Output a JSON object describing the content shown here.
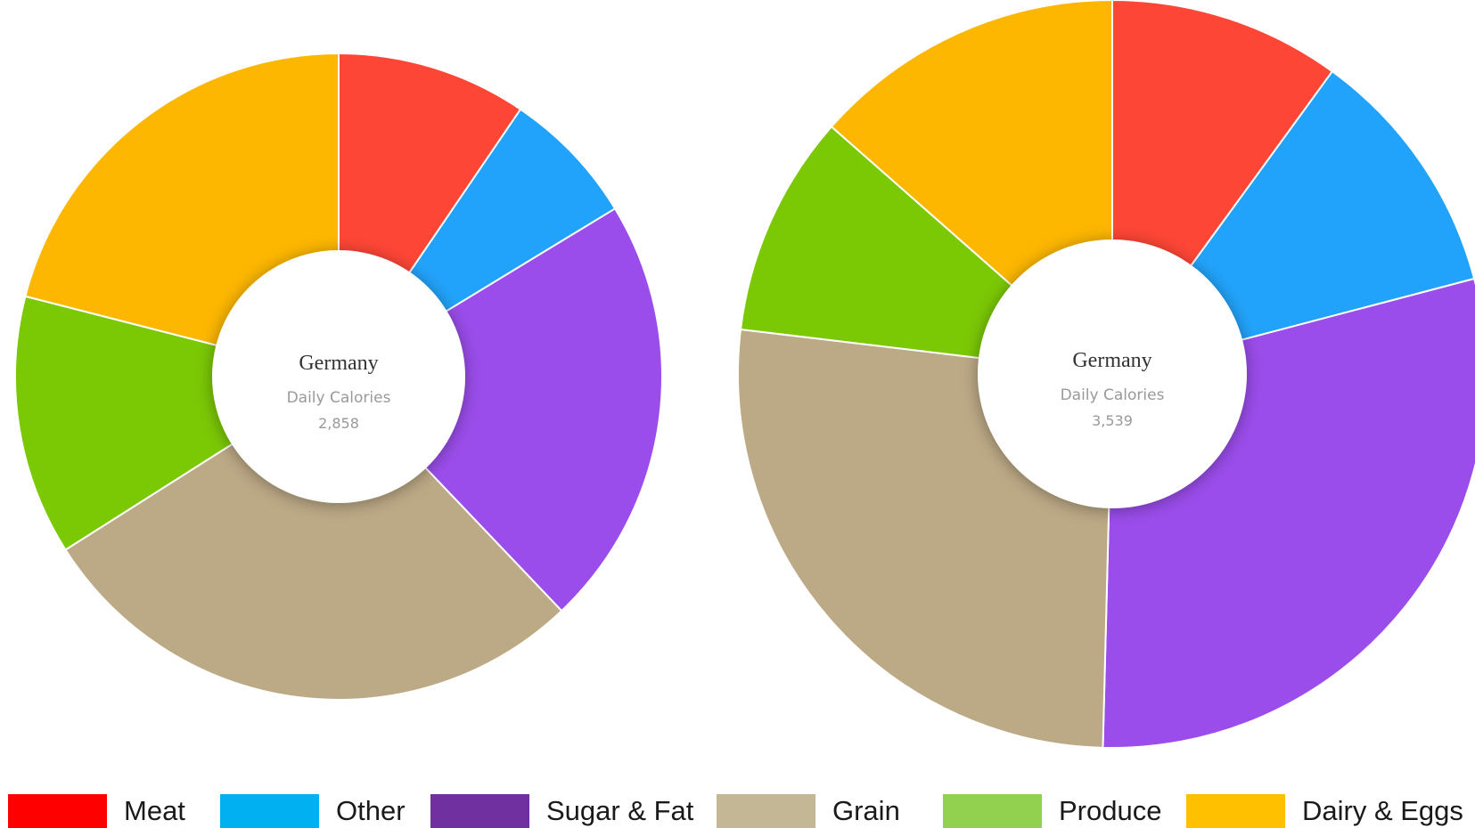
{
  "chart_data": [
    {
      "type": "pie",
      "center_title": "Germany",
      "center_label": "Daily Calories",
      "center_value": "2,858",
      "categories": [
        "Meat",
        "Other",
        "Sugar & Fat",
        "Grain",
        "Produce",
        "Dairy & Eggs"
      ],
      "values": [
        9.5,
        6.8,
        21.6,
        28.1,
        13.0,
        21.0
      ]
    },
    {
      "type": "pie",
      "center_title": "Germany",
      "center_label": "Daily Calories",
      "center_value": "3,539",
      "categories": [
        "Meat",
        "Other",
        "Sugar & Fat",
        "Grain",
        "Produce",
        "Dairy & Eggs"
      ],
      "values": [
        10.0,
        10.9,
        29.5,
        26.5,
        9.6,
        13.5
      ]
    }
  ],
  "legend": [
    {
      "label": "Meat",
      "color": "#ff0000"
    },
    {
      "label": "Other",
      "color": "#00b0f0"
    },
    {
      "label": "Sugar & Fat",
      "color": "#7030a0"
    },
    {
      "label": "Grain",
      "color": "#c4b796"
    },
    {
      "label": "Produce",
      "color": "#92d050"
    },
    {
      "label": "Dairy & Eggs",
      "color": "#ffc000"
    }
  ],
  "slice_colors": [
    "#fe4636",
    "#22a3fb",
    "#9b4deb",
    "#bca986",
    "#7bc805",
    "#fdb700"
  ]
}
